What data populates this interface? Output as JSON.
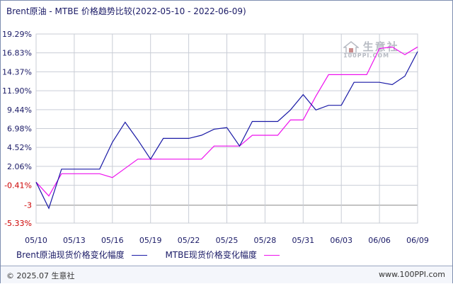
{
  "title": "Brent原油 - MTBE 价格趋势比较(2022-05-10 - 2022-06-09)",
  "watermark": {
    "name": "生意社",
    "site": "100PPI.COM"
  },
  "footer": {
    "copyright": "© 2025.07 生意社",
    "url": "www.100PPI.com"
  },
  "colors": {
    "brent": "#1a1aa6",
    "mtbe": "#ee11ee",
    "grid": "#c9cdd6",
    "zero_line": "#888888",
    "tick_text": "#1a1a66",
    "tick_text_red": "#cc0000"
  },
  "chart_data": {
    "type": "line",
    "title": "Brent原油 - MTBE 价格趋势比较(2022-05-10 - 2022-06-09)",
    "xlabel": "",
    "ylabel": "",
    "x_ticks": [
      "05/10",
      "05/13",
      "05/16",
      "05/19",
      "05/22",
      "05/25",
      "05/28",
      "05/31",
      "06/03",
      "06/06",
      "06/09"
    ],
    "y_ticks": [
      "19.29%",
      "16.83%",
      "14.37%",
      "11.90%",
      "9.44%",
      "6.98%",
      "4.52%",
      "2.06%",
      "-0.41%",
      "-3",
      "-5.33%"
    ],
    "y_tick_values": [
      19.29,
      16.83,
      14.37,
      11.9,
      9.44,
      6.98,
      4.52,
      2.06,
      -0.41,
      -3,
      -5.33
    ],
    "ylim": [
      -5.33,
      19.29
    ],
    "grid": true,
    "legend_position": "bottom-left",
    "x": [
      "05/10",
      "05/11",
      "05/12",
      "05/13",
      "05/14",
      "05/15",
      "05/16",
      "05/17",
      "05/18",
      "05/19",
      "05/20",
      "05/21",
      "05/22",
      "05/23",
      "05/24",
      "05/25",
      "05/26",
      "05/27",
      "05/28",
      "05/29",
      "05/30",
      "05/31",
      "06/01",
      "06/02",
      "06/03",
      "06/04",
      "06/05",
      "06/06",
      "06/07",
      "06/08",
      "06/09"
    ],
    "series": [
      {
        "name": "Brent原油现货价格变化幅度",
        "values": [
          0,
          -3.4,
          1.7,
          1.7,
          1.7,
          1.7,
          5.2,
          7.8,
          5.5,
          3.0,
          5.7,
          5.7,
          5.7,
          6.1,
          6.9,
          7.1,
          4.7,
          7.9,
          7.9,
          7.9,
          9.4,
          11.4,
          9.4,
          10.0,
          10.0,
          13.0,
          13.0,
          13.0,
          12.7,
          13.8,
          17.0
        ]
      },
      {
        "name": "MTBE现货价格变化幅度",
        "values": [
          0,
          -1.8,
          1.1,
          1.1,
          1.1,
          1.1,
          0.6,
          1.8,
          3.0,
          3.0,
          3.0,
          3.0,
          3.0,
          3.0,
          4.7,
          4.7,
          4.7,
          6.1,
          6.1,
          6.1,
          8.1,
          8.1,
          11.2,
          14.0,
          14.0,
          14.0,
          14.0,
          17.4,
          17.6,
          16.6,
          17.6
        ]
      }
    ]
  }
}
